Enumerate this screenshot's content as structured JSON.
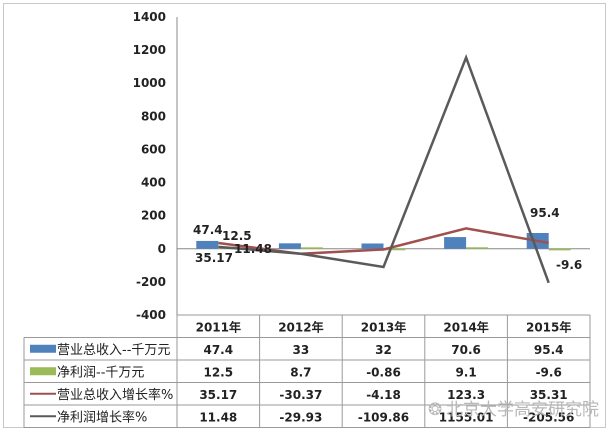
{
  "chart_data": {
    "type": "bar+line",
    "title": "",
    "categories": [
      "2011年",
      "2012年",
      "2013年",
      "2014年",
      "2015年"
    ],
    "series": [
      {
        "name": "营业总收入--千万元",
        "type": "bar",
        "color": "#4f81bd",
        "values": [
          47.4,
          33,
          32,
          70.6,
          95.4
        ],
        "display": [
          "47.4",
          "33",
          "32",
          "70.6",
          "95.4"
        ]
      },
      {
        "name": "净利润--千万元",
        "type": "bar",
        "color": "#9bbb59",
        "values": [
          12.5,
          8.7,
          -0.86,
          9.1,
          -9.6
        ],
        "display": [
          "12.5",
          "8.7",
          "-0.86",
          "9.1",
          "-9.6"
        ]
      },
      {
        "name": "营业总收入增长率%",
        "type": "line",
        "color": "#a0504e",
        "values": [
          35.17,
          -30.37,
          -4.18,
          123.3,
          35.31
        ],
        "display": [
          "35.17",
          "-30.37",
          "-4.18",
          "123.3",
          "35.31"
        ]
      },
      {
        "name": "净利润增长率%",
        "type": "line",
        "color": "#5a5a5a",
        "values": [
          11.48,
          -29.93,
          -109.86,
          1155.01,
          -205.56
        ],
        "display": [
          "11.48",
          "-29.93",
          "-109.86",
          "1155.01",
          "-205.56"
        ]
      }
    ],
    "data_labels": [
      {
        "text": "47.4",
        "series": 0,
        "index": 0
      },
      {
        "text": "12.5",
        "series": 1,
        "index": 0
      },
      {
        "text": "11.48",
        "series": 3,
        "index": 0
      },
      {
        "text": "35.17",
        "series": 2,
        "index": 0
      },
      {
        "text": "95.4",
        "series": 0,
        "index": 4
      },
      {
        "text": "-9.6",
        "series": 1,
        "index": 4
      }
    ],
    "yticks": [
      1400,
      1200,
      1000,
      800,
      600,
      400,
      200,
      0,
      -200,
      -400
    ],
    "ytick_labels": [
      "1400",
      "1200",
      "1000",
      "800",
      "600",
      "400",
      "200",
      "0",
      "-200",
      "-400"
    ],
    "ylim": [
      -400,
      1400
    ],
    "xlabel": "",
    "ylabel": "",
    "grid": false,
    "legend_position": "data-table"
  },
  "watermark": "北京大学高安研究院"
}
